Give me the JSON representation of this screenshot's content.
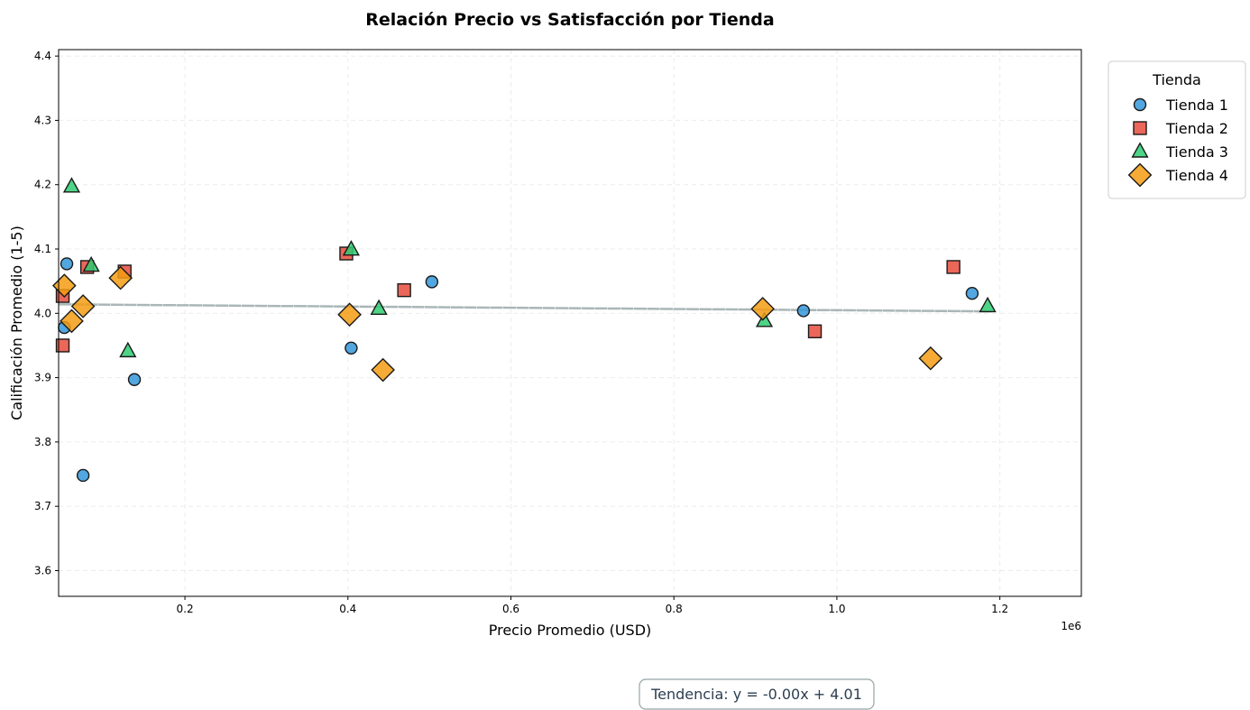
{
  "chart_data": {
    "type": "scatter",
    "title": "Relación Precio vs Satisfacción por Tienda",
    "xlabel": "Precio Promedio (USD)",
    "ylabel": "Calificación Promedio (1-5)",
    "x_offset_label": "1e6",
    "xlim": [
      45000,
      1300000
    ],
    "ylim": [
      3.56,
      4.41
    ],
    "x_ticks": [
      0.2,
      0.4,
      0.6,
      0.8,
      1.0,
      1.2
    ],
    "x_tick_labels": [
      "0.2",
      "0.4",
      "0.6",
      "0.8",
      "1.0",
      "1.2"
    ],
    "y_ticks": [
      3.6,
      3.7,
      3.8,
      3.9,
      4.0,
      4.1,
      4.2,
      4.3,
      4.4
    ],
    "y_tick_labels": [
      "3.6",
      "3.7",
      "3.8",
      "3.9",
      "4.0",
      "4.1",
      "4.2",
      "4.3",
      "4.4"
    ],
    "grid": true,
    "legend_title": "Tienda",
    "legend_position": "outside-top-right",
    "series": [
      {
        "name": "Tienda 1",
        "marker": "circle",
        "color": "#3498db",
        "points": [
          {
            "x": 52000,
            "y": 3.978
          },
          {
            "x": 55000,
            "y": 4.077
          },
          {
            "x": 75000,
            "y": 3.748
          },
          {
            "x": 138000,
            "y": 3.897
          },
          {
            "x": 404000,
            "y": 3.946
          },
          {
            "x": 503000,
            "y": 4.049
          },
          {
            "x": 959000,
            "y": 4.004
          },
          {
            "x": 1166000,
            "y": 4.031
          }
        ]
      },
      {
        "name": "Tienda 2",
        "marker": "square",
        "color": "#e74c3c",
        "points": [
          {
            "x": 50000,
            "y": 3.95
          },
          {
            "x": 50000,
            "y": 4.027
          },
          {
            "x": 80000,
            "y": 4.072
          },
          {
            "x": 126000,
            "y": 4.065
          },
          {
            "x": 398000,
            "y": 4.093
          },
          {
            "x": 469000,
            "y": 4.036
          },
          {
            "x": 973000,
            "y": 3.972
          },
          {
            "x": 1143000,
            "y": 4.072
          }
        ]
      },
      {
        "name": "Tienda 3",
        "marker": "triangle",
        "color": "#2ecc71",
        "points": [
          {
            "x": 61000,
            "y": 4.197
          },
          {
            "x": 85000,
            "y": 4.074
          },
          {
            "x": 130000,
            "y": 3.941
          },
          {
            "x": 404000,
            "y": 4.099
          },
          {
            "x": 438000,
            "y": 4.007
          },
          {
            "x": 911000,
            "y": 3.988
          },
          {
            "x": 1185000,
            "y": 4.011
          }
        ]
      },
      {
        "name": "Tienda 4",
        "marker": "diamond",
        "color": "#f39c12",
        "points": [
          {
            "x": 52000,
            "y": 4.043
          },
          {
            "x": 61000,
            "y": 3.988
          },
          {
            "x": 75000,
            "y": 4.011
          },
          {
            "x": 121000,
            "y": 4.055
          },
          {
            "x": 402000,
            "y": 3.998
          },
          {
            "x": 443000,
            "y": 3.912
          },
          {
            "x": 909000,
            "y": 4.007
          },
          {
            "x": 1115000,
            "y": 3.93
          }
        ]
      }
    ],
    "trend_line": {
      "x_start": 45000,
      "y_start": 4.014,
      "x_end": 1190000,
      "y_end": 4.003,
      "color": "#95a5a6"
    },
    "annotation": "Tendencia: y = -0.00x + 4.01"
  }
}
